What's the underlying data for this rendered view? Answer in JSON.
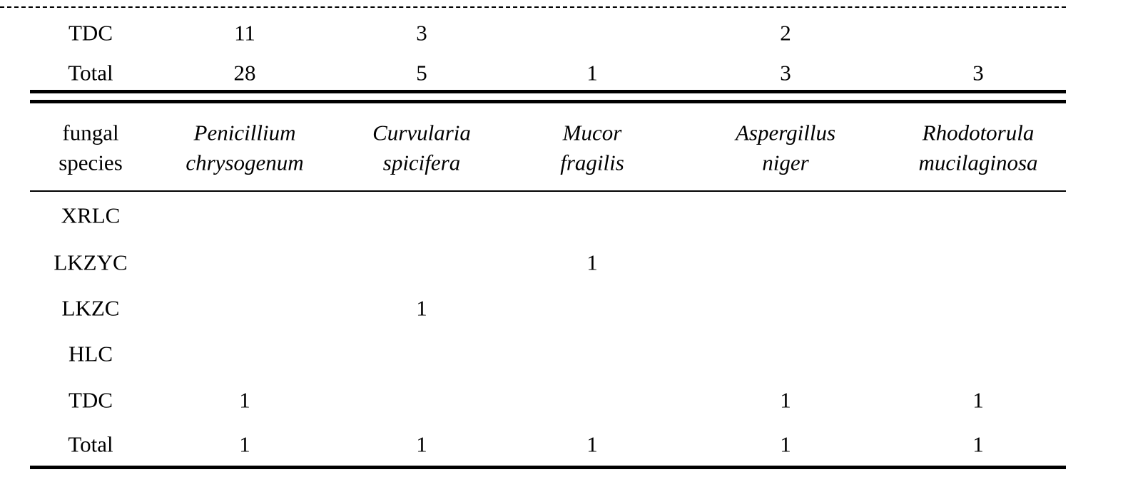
{
  "table_top": {
    "rows": [
      [
        "TDC",
        "11",
        "3",
        null,
        "2",
        null
      ],
      [
        "Total",
        "28",
        "5",
        "1",
        "3",
        "3"
      ]
    ]
  },
  "table": {
    "header": [
      [
        "fungal",
        "species"
      ],
      [
        "Penicillium",
        "chrysogenum"
      ],
      [
        "Curvularia",
        "spicifera"
      ],
      [
        "Mucor",
        "fragilis"
      ],
      [
        "Aspergillus",
        "niger"
      ],
      [
        "Rhodotorula",
        "mucilaginosa"
      ]
    ],
    "rows": [
      [
        "XRLC",
        null,
        null,
        null,
        null,
        null
      ],
      [
        "LKZYC",
        null,
        null,
        "1",
        null,
        null
      ],
      [
        "LKZC",
        null,
        "1",
        null,
        null,
        null
      ],
      [
        "HLC",
        null,
        null,
        null,
        null,
        null
      ],
      [
        "TDC",
        "1",
        null,
        null,
        "1",
        "1"
      ],
      [
        "Total",
        "1",
        "1",
        "1",
        "1",
        "1"
      ]
    ]
  }
}
